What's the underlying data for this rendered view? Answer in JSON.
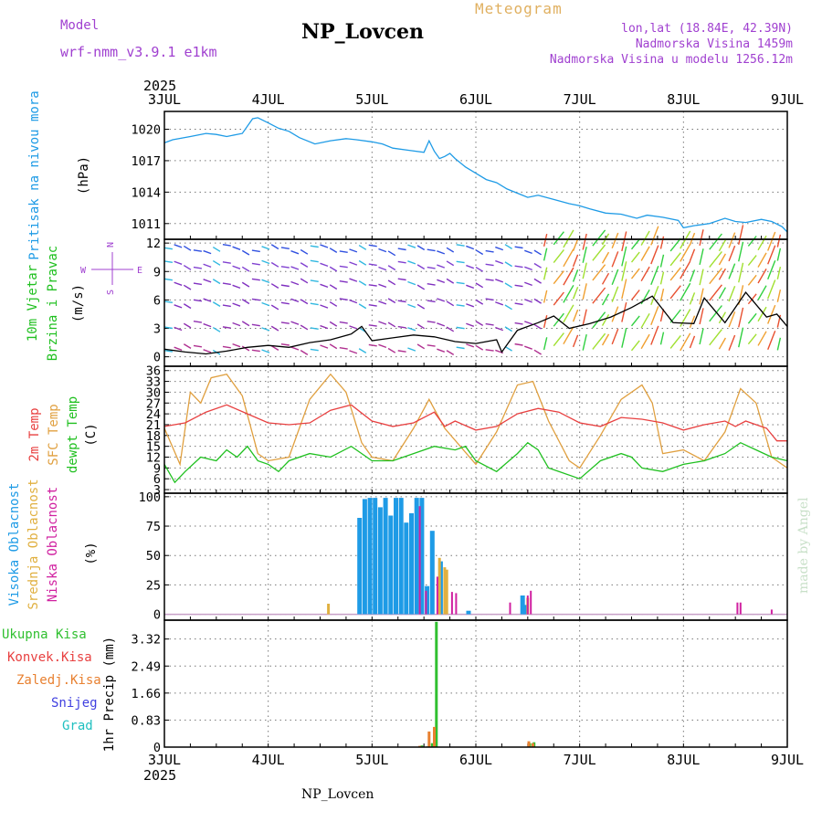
{
  "header": {
    "model_label": "Model",
    "model_value": "wrf-nmm_v3.9.1 e1km",
    "meteogram_label": "Meteogram",
    "station": "NP_Lovcen",
    "lonlat": "lon,lat (18.84E, 42.39N)",
    "elevation": "Nadmorska Visina 1459m",
    "elevation_model": "Nadmorska Visina u modelu 1256.12m"
  },
  "footer": {
    "station": "NP_Lovcen",
    "credit": "made by Angel"
  },
  "time_axis": {
    "year": "2025",
    "ticks": [
      "3JUL",
      "4JUL",
      "5JUL",
      "6JUL",
      "7JUL",
      "8JUL",
      "9JUL"
    ]
  },
  "wind_compass": {
    "n": "N",
    "e": "E",
    "w": "W",
    "s": "S"
  },
  "colors": {
    "pressure": "#1e9be6",
    "temp2m": "#e84040",
    "sfc": "#e0a040",
    "dewpt": "#20c020",
    "high_cloud": "#1e9be6",
    "mid_cloud": "#e0b040",
    "low_cloud": "#d020a0",
    "total_precip": "#30c030",
    "conv_precip": "#e84040",
    "frozen": "#e88030",
    "snow": "#4040e0",
    "hail": "#20c0c0",
    "wind_label": "#20c020",
    "compass": "#a040d0"
  },
  "chart_data": [
    {
      "type": "line",
      "ylabel": [
        "Pritisak na nivou mora",
        "(hPa)"
      ],
      "yticks": [
        1011,
        1014,
        1017,
        1020
      ],
      "ylim": [
        1009.5,
        1021.7
      ],
      "grid": true,
      "series": [
        {
          "name": "Pritisak na nivou mora",
          "x": [
            0,
            0.08,
            0.25,
            0.4,
            0.5,
            0.6,
            0.75,
            0.85,
            0.9,
            1.0,
            1.1,
            1.2,
            1.3,
            1.45,
            1.6,
            1.75,
            1.85,
            2.0,
            2.1,
            2.2,
            2.35,
            2.5,
            2.55,
            2.6,
            2.65,
            2.7,
            2.75,
            2.8,
            2.9,
            3.0,
            3.1,
            3.2,
            3.3,
            3.4,
            3.5,
            3.6,
            3.75,
            3.9,
            4.0,
            4.1,
            4.25,
            4.4,
            4.55,
            4.65,
            4.8,
            4.95,
            5.0,
            5.1,
            5.25,
            5.4,
            5.5,
            5.6,
            5.75,
            5.85,
            5.95,
            6.0
          ],
          "y": [
            1018.7,
            1019.0,
            1019.3,
            1019.6,
            1019.5,
            1019.3,
            1019.6,
            1021.0,
            1021.1,
            1020.6,
            1020.1,
            1019.8,
            1019.2,
            1018.6,
            1018.9,
            1019.1,
            1019.0,
            1018.8,
            1018.6,
            1018.2,
            1018.0,
            1017.8,
            1018.9,
            1017.9,
            1017.2,
            1017.4,
            1017.7,
            1017.2,
            1016.4,
            1015.8,
            1015.2,
            1014.9,
            1014.3,
            1013.9,
            1013.5,
            1013.7,
            1013.3,
            1012.9,
            1012.7,
            1012.4,
            1012.0,
            1011.9,
            1011.5,
            1011.8,
            1011.6,
            1011.3,
            1010.6,
            1010.8,
            1011.0,
            1011.5,
            1011.2,
            1011.1,
            1011.4,
            1011.2,
            1010.7,
            1010.2
          ]
        }
      ]
    },
    {
      "type": "line",
      "ylabel": [
        "10m Vjetar",
        "Brzina i Pravac",
        "(m/s)"
      ],
      "yticks": [
        0,
        3,
        6,
        9,
        12
      ],
      "ylim": [
        -1,
        12.4
      ],
      "grid": true,
      "series": [
        {
          "name": "Brzina",
          "x": [
            0,
            0.2,
            0.4,
            0.6,
            0.8,
            1.0,
            1.2,
            1.4,
            1.6,
            1.8,
            1.9,
            2.0,
            2.2,
            2.4,
            2.6,
            2.8,
            3.0,
            3.2,
            3.25,
            3.4,
            3.6,
            3.75,
            3.9,
            4.1,
            4.3,
            4.5,
            4.7,
            4.9,
            5.1,
            5.2,
            5.4,
            5.6,
            5.8,
            5.9,
            6.0
          ],
          "y": [
            0.8,
            0.5,
            0.3,
            0.6,
            1.0,
            1.2,
            1.0,
            1.5,
            1.8,
            2.4,
            3.2,
            1.7,
            2.0,
            2.3,
            2.1,
            1.6,
            1.4,
            1.8,
            0.5,
            2.8,
            3.6,
            4.3,
            3.0,
            3.5,
            4.2,
            5.2,
            6.4,
            3.6,
            3.5,
            6.2,
            3.6,
            6.8,
            4.2,
            4.5,
            3.2
          ]
        }
      ]
    },
    {
      "type": "line",
      "ylabel": [
        "2m Temp",
        "SFC Temp",
        "dewpt Temp",
        "(C)"
      ],
      "yticks": [
        3,
        6,
        9,
        12,
        15,
        18,
        21,
        24,
        27,
        30,
        33,
        36
      ],
      "ylim": [
        2,
        37.2
      ],
      "grid": true,
      "series": [
        {
          "name": "2m Temp",
          "x": [
            0,
            0.2,
            0.4,
            0.6,
            0.8,
            1.0,
            1.2,
            1.4,
            1.6,
            1.8,
            2.0,
            2.2,
            2.4,
            2.6,
            2.7,
            2.8,
            3.0,
            3.2,
            3.4,
            3.6,
            3.8,
            4.0,
            4.2,
            4.4,
            4.6,
            4.8,
            5.0,
            5.2,
            5.4,
            5.5,
            5.6,
            5.7,
            5.8,
            5.9,
            6.0
          ],
          "y": [
            20.5,
            21.5,
            24.5,
            26.5,
            24,
            21.5,
            21,
            21.5,
            25,
            26.5,
            22,
            20.5,
            21.5,
            24.5,
            20.5,
            22,
            19.5,
            20.5,
            24,
            25.5,
            24.5,
            21.5,
            20.5,
            23,
            22.5,
            21.5,
            19.5,
            21,
            22,
            20.5,
            22,
            21,
            20,
            16.5,
            16.5
          ]
        },
        {
          "name": "SFC Temp",
          "x": [
            0,
            0.15,
            0.25,
            0.35,
            0.45,
            0.6,
            0.75,
            0.9,
            1.0,
            1.2,
            1.4,
            1.6,
            1.75,
            1.9,
            2.0,
            2.2,
            2.4,
            2.55,
            2.7,
            2.85,
            3.0,
            3.2,
            3.4,
            3.55,
            3.7,
            3.9,
            4.0,
            4.2,
            4.4,
            4.6,
            4.7,
            4.8,
            5.0,
            5.2,
            5.4,
            5.55,
            5.7,
            5.85,
            6.0
          ],
          "y": [
            20,
            10,
            30,
            27,
            34,
            35,
            29,
            13,
            11,
            12,
            28,
            35,
            30,
            16,
            12,
            11,
            20,
            28,
            20,
            15,
            10,
            19,
            32,
            33,
            22,
            11,
            9,
            18,
            28,
            32,
            27,
            13,
            14,
            11,
            19,
            31,
            27,
            12,
            9
          ]
        },
        {
          "name": "dewpt Temp",
          "x": [
            0,
            0.1,
            0.2,
            0.35,
            0.5,
            0.6,
            0.7,
            0.8,
            0.9,
            1.0,
            1.1,
            1.2,
            1.4,
            1.6,
            1.8,
            1.9,
            2.0,
            2.2,
            2.4,
            2.6,
            2.8,
            2.9,
            3.0,
            3.2,
            3.4,
            3.5,
            3.6,
            3.7,
            3.8,
            4.0,
            4.2,
            4.4,
            4.5,
            4.6,
            4.8,
            5.0,
            5.2,
            5.4,
            5.55,
            5.7,
            5.85,
            6.0
          ],
          "y": [
            10,
            5,
            8,
            12,
            11,
            14,
            12,
            15,
            11,
            10,
            8,
            11,
            13,
            12,
            15,
            13,
            11,
            11,
            13,
            15,
            14,
            15,
            11,
            8,
            13,
            16,
            14,
            9,
            8,
            6,
            11,
            13,
            12,
            9,
            8,
            10,
            11,
            13,
            16,
            14,
            12,
            11
          ]
        }
      ]
    },
    {
      "type": "bar",
      "ylabel": [
        "Visoka Oblacnost",
        "Srednja Oblacnost",
        "Niska Oblacnost",
        "(%)"
      ],
      "yticks": [
        0,
        25,
        50,
        75,
        100
      ],
      "ylim": [
        -5,
        103
      ],
      "grid": true,
      "series": [
        {
          "name": "Visoka Oblacnost",
          "x": [
            1.88,
            1.93,
            1.98,
            2.03,
            2.08,
            2.13,
            2.18,
            2.23,
            2.28,
            2.33,
            2.38,
            2.43,
            2.48,
            2.53,
            2.58,
            2.66,
            2.93,
            3.45,
            3.48
          ],
          "values": [
            82,
            98,
            99,
            99,
            91,
            99,
            84,
            99,
            99,
            78,
            86,
            99,
            99,
            24,
            71,
            45,
            3,
            16,
            8
          ]
        },
        {
          "name": "Srednja Oblacnost",
          "x": [
            1.58,
            2.65,
            2.7,
            2.72,
            3.5
          ],
          "values": [
            9,
            48,
            40,
            38,
            14
          ]
        },
        {
          "name": "Niska Oblacnost",
          "x": [
            2.46,
            2.52,
            2.63,
            2.77,
            2.81,
            3.33,
            3.5,
            3.53,
            5.52,
            5.55,
            5.85
          ],
          "values": [
            92,
            20,
            32,
            19,
            18,
            10,
            16,
            20,
            10,
            10,
            4
          ]
        }
      ]
    },
    {
      "type": "bar",
      "ylabel": [
        "1hr Precip (mm)"
      ],
      "legend_labels": [
        "Ukupna Kisa",
        "Konvek.Kisa",
        "Zaledj.Kisa",
        "Snijeg",
        "Grad"
      ],
      "yticks": [
        0,
        0.83,
        1.66,
        2.49,
        3.32
      ],
      "ylim": [
        0,
        3.9
      ],
      "grid": true,
      "series": [
        {
          "name": "Ukupna Kisa",
          "x": [
            2.48,
            2.53,
            2.58,
            2.62,
            3.52,
            3.56
          ],
          "values": [
            0.05,
            0.02,
            0.12,
            3.85,
            0.12,
            0.15
          ]
        },
        {
          "name": "Zaledj.Kisa",
          "x": [
            2.46,
            2.55,
            2.6,
            3.51,
            3.55
          ],
          "values": [
            0.04,
            0.48,
            0.62,
            0.18,
            0.12
          ]
        }
      ]
    }
  ]
}
